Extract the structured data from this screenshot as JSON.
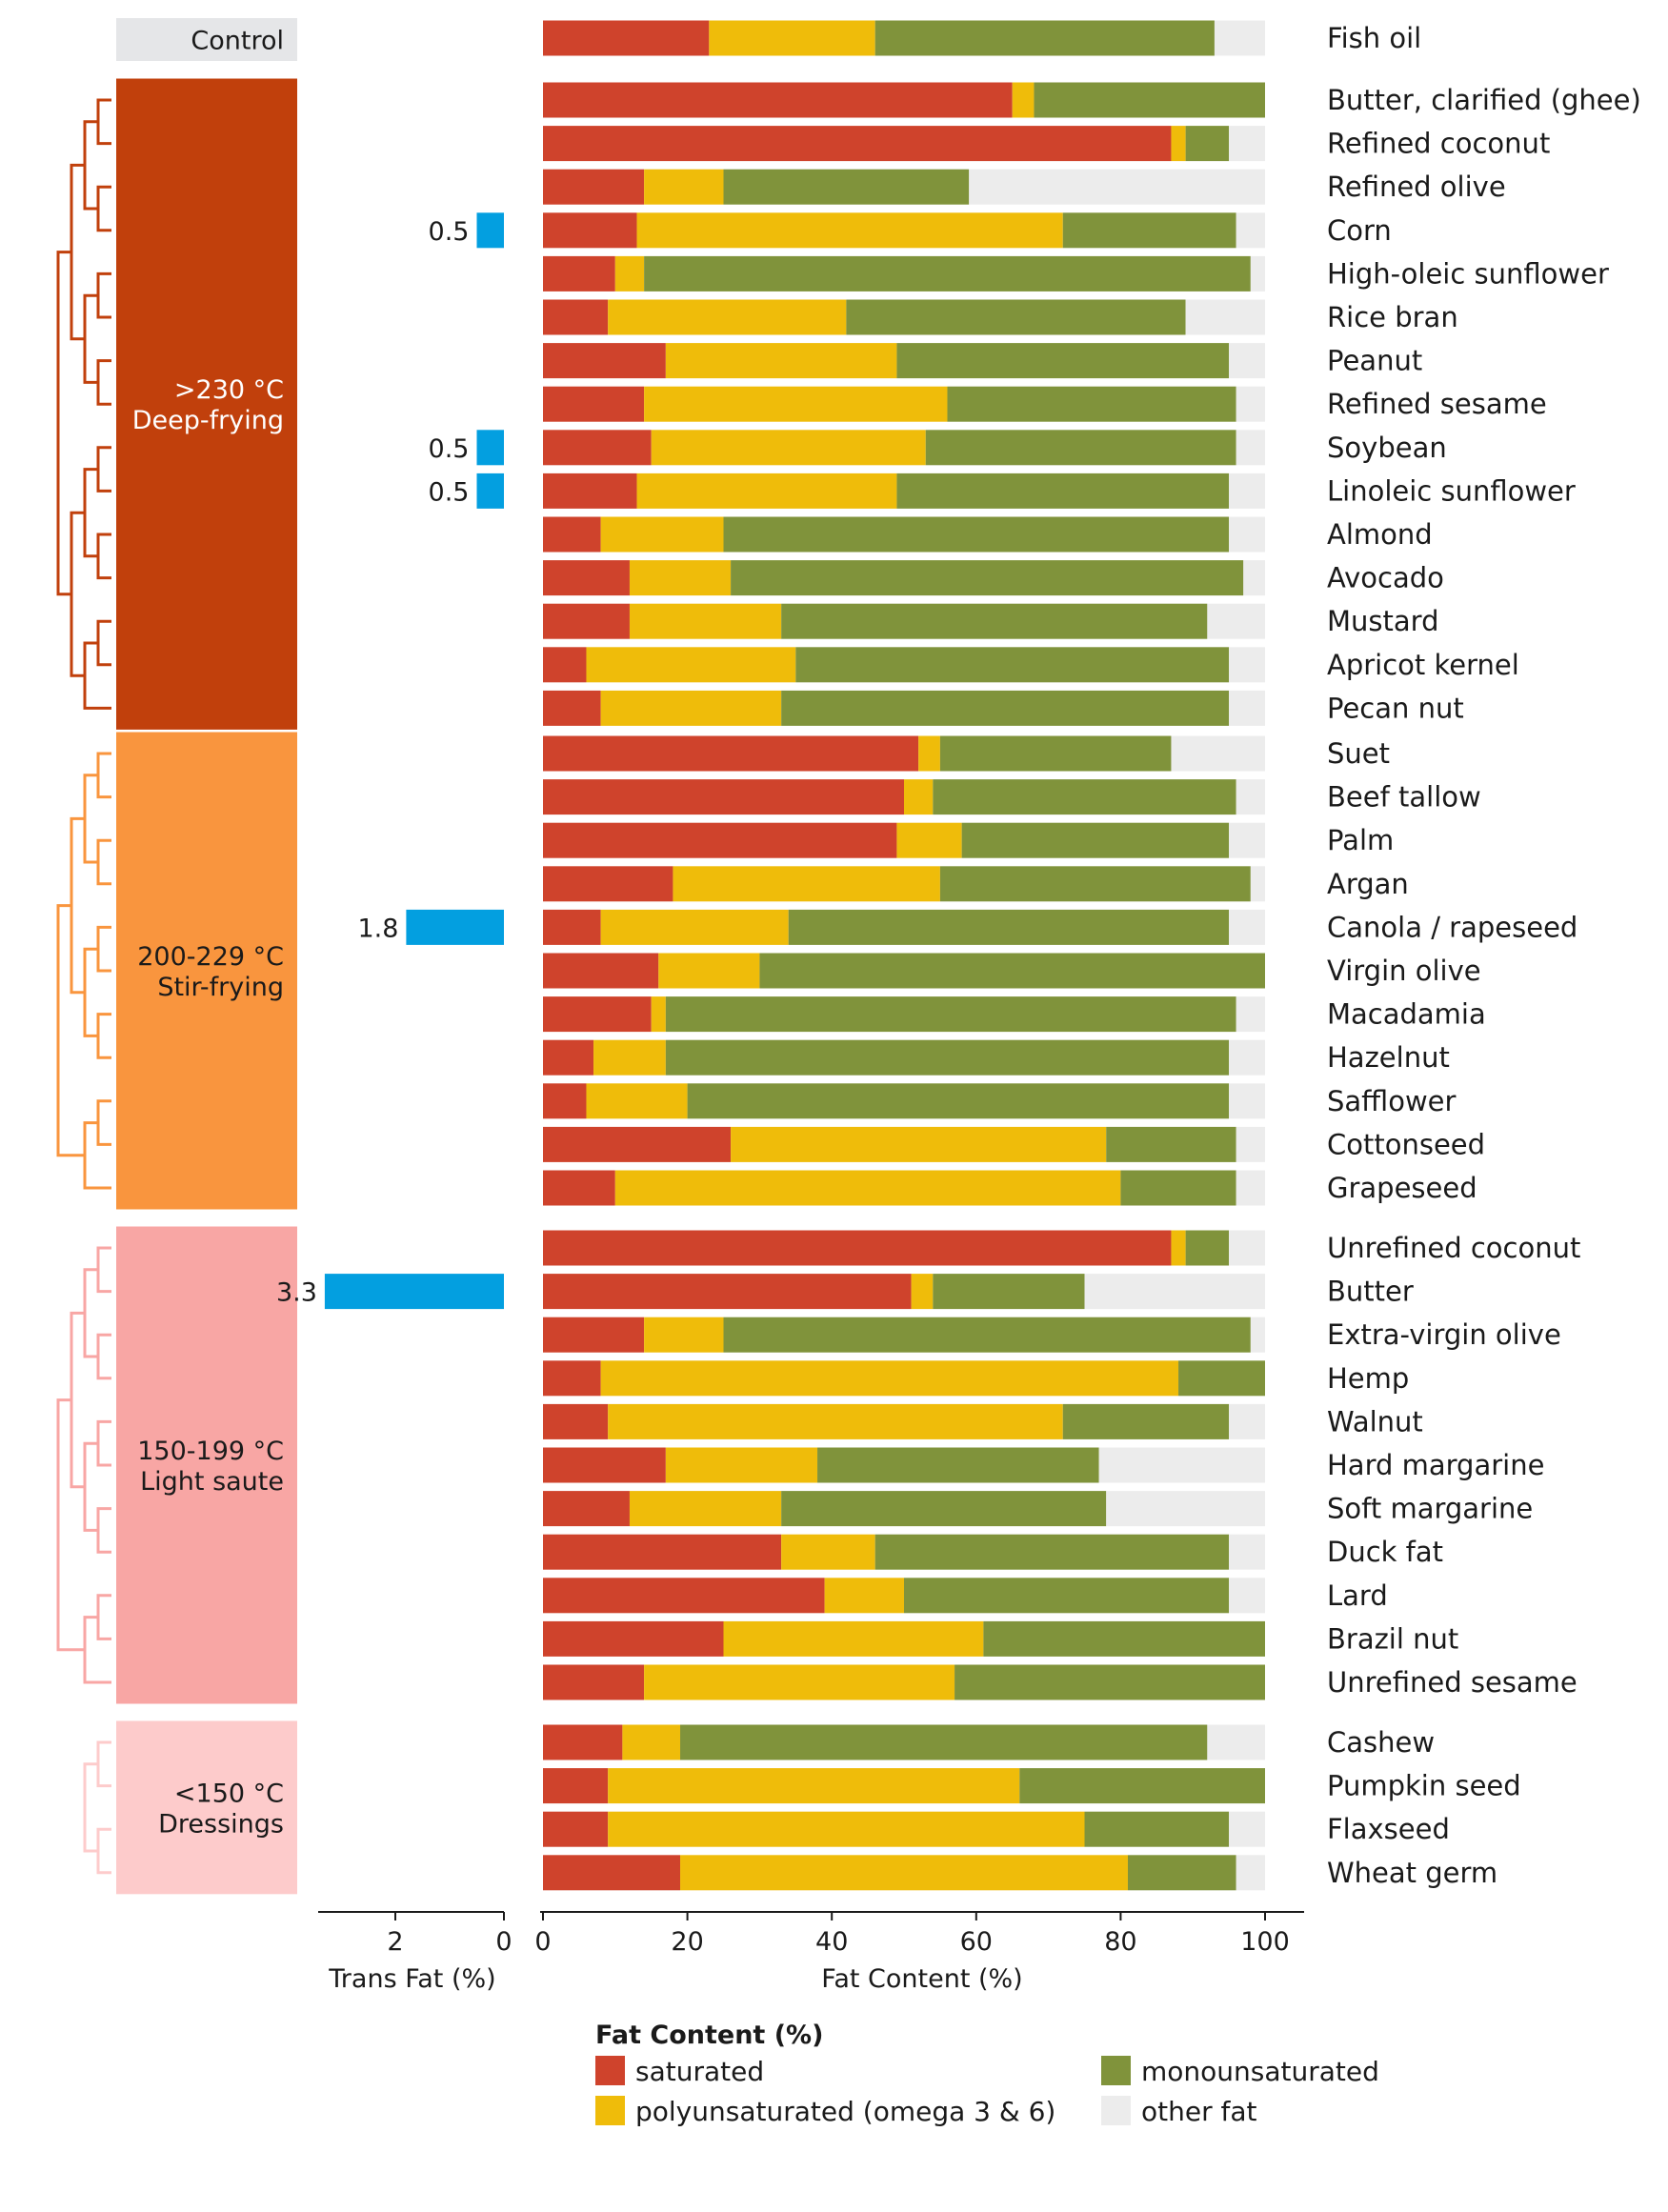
{
  "chart_data": {
    "type": "bar",
    "stacked": true,
    "orientation": "horizontal",
    "xlabel": "Fat Content (%)",
    "xlim": [
      0,
      100
    ],
    "xticks": [
      0,
      20,
      40,
      60,
      80,
      100
    ],
    "trans_xlabel": "Trans Fat (%)",
    "trans_xlim": [
      3.3,
      0
    ],
    "trans_xticks": [
      2,
      0
    ],
    "legend": {
      "title": "Fat Content (%)",
      "placement": "bottom",
      "entries": [
        {
          "key": "saturated",
          "label": "saturated",
          "color": "#cf432c"
        },
        {
          "key": "polyunsaturated",
          "label": "polyunsaturated (omega 3 & 6)",
          "color": "#efbc0a"
        },
        {
          "key": "monounsaturated",
          "label": "monounsaturated",
          "color": "#80933b"
        },
        {
          "key": "other",
          "label": "other fat",
          "color": "#ececec"
        }
      ]
    },
    "trans_fat_color": "#039fe0",
    "groups": [
      {
        "label_lines": [
          "Control"
        ],
        "color": "#e5e6e8",
        "text_color": "#1a1a1a",
        "oils": [
          {
            "name": "Fish oil",
            "saturated": 23,
            "polyunsaturated": 23,
            "monounsaturated": 47,
            "other": 7
          }
        ]
      },
      {
        "label_lines": [
          ">230 °C",
          "Deep-frying"
        ],
        "color": "#c1400c",
        "text_color": "#ffffff",
        "oils": [
          {
            "name": "Butter, clarified (ghee)",
            "saturated": 65,
            "polyunsaturated": 3,
            "monounsaturated": 32,
            "other": 0
          },
          {
            "name": "Refined coconut",
            "saturated": 87,
            "polyunsaturated": 2,
            "monounsaturated": 6,
            "other": 5
          },
          {
            "name": "Refined olive",
            "saturated": 14,
            "polyunsaturated": 11,
            "monounsaturated": 34,
            "other": 41
          },
          {
            "name": "Corn",
            "saturated": 13,
            "polyunsaturated": 59,
            "monounsaturated": 24,
            "other": 4,
            "trans": 0.5
          },
          {
            "name": "High-oleic sunflower",
            "saturated": 10,
            "polyunsaturated": 4,
            "monounsaturated": 84,
            "other": 2
          },
          {
            "name": "Rice bran",
            "saturated": 9,
            "polyunsaturated": 33,
            "monounsaturated": 47,
            "other": 11
          },
          {
            "name": "Peanut",
            "saturated": 17,
            "polyunsaturated": 32,
            "monounsaturated": 46,
            "other": 5
          },
          {
            "name": "Refined sesame",
            "saturated": 14,
            "polyunsaturated": 42,
            "monounsaturated": 40,
            "other": 4
          },
          {
            "name": "Soybean",
            "saturated": 15,
            "polyunsaturated": 38,
            "monounsaturated": 43,
            "other": 4,
            "trans": 0.5
          },
          {
            "name": "Linoleic sunflower",
            "saturated": 13,
            "polyunsaturated": 36,
            "monounsaturated": 46,
            "other": 5,
            "trans": 0.5
          },
          {
            "name": "Almond",
            "saturated": 8,
            "polyunsaturated": 17,
            "monounsaturated": 70,
            "other": 5
          },
          {
            "name": "Avocado",
            "saturated": 12,
            "polyunsaturated": 14,
            "monounsaturated": 71,
            "other": 3
          },
          {
            "name": "Mustard",
            "saturated": 12,
            "polyunsaturated": 21,
            "monounsaturated": 59,
            "other": 8
          },
          {
            "name": "Apricot kernel",
            "saturated": 6,
            "polyunsaturated": 29,
            "monounsaturated": 60,
            "other": 5
          },
          {
            "name": "Pecan nut",
            "saturated": 8,
            "polyunsaturated": 25,
            "monounsaturated": 62,
            "other": 5
          }
        ]
      },
      {
        "label_lines": [
          "200-229 °C",
          "Stir-frying"
        ],
        "color": "#f9953e",
        "text_color": "#1a1a1a",
        "oils": [
          {
            "name": "Suet",
            "saturated": 52,
            "polyunsaturated": 3,
            "monounsaturated": 32,
            "other": 13
          },
          {
            "name": "Beef tallow",
            "saturated": 50,
            "polyunsaturated": 4,
            "monounsaturated": 42,
            "other": 4
          },
          {
            "name": "Palm",
            "saturated": 49,
            "polyunsaturated": 9,
            "monounsaturated": 37,
            "other": 5
          },
          {
            "name": "Argan",
            "saturated": 18,
            "polyunsaturated": 37,
            "monounsaturated": 43,
            "other": 2
          },
          {
            "name": "Canola / rapeseed",
            "saturated": 8,
            "polyunsaturated": 26,
            "monounsaturated": 61,
            "other": 5,
            "trans": 1.8
          },
          {
            "name": "Virgin olive",
            "saturated": 16,
            "polyunsaturated": 14,
            "monounsaturated": 70,
            "other": 0
          },
          {
            "name": "Macadamia",
            "saturated": 15,
            "polyunsaturated": 2,
            "monounsaturated": 79,
            "other": 4
          },
          {
            "name": "Hazelnut",
            "saturated": 7,
            "polyunsaturated": 10,
            "monounsaturated": 78,
            "other": 5
          },
          {
            "name": "Safflower",
            "saturated": 6,
            "polyunsaturated": 14,
            "monounsaturated": 75,
            "other": 5
          },
          {
            "name": "Cottonseed",
            "saturated": 26,
            "polyunsaturated": 52,
            "monounsaturated": 18,
            "other": 4
          },
          {
            "name": "Grapeseed",
            "saturated": 10,
            "polyunsaturated": 70,
            "monounsaturated": 16,
            "other": 4
          }
        ]
      },
      {
        "label_lines": [
          "150-199 °C",
          "Light saute"
        ],
        "color": "#f8a6a4",
        "text_color": "#1a1a1a",
        "oils": [
          {
            "name": "Unrefined coconut",
            "saturated": 87,
            "polyunsaturated": 2,
            "monounsaturated": 6,
            "other": 5
          },
          {
            "name": "Butter",
            "saturated": 51,
            "polyunsaturated": 3,
            "monounsaturated": 21,
            "other": 25,
            "trans": 3.3,
            "trans_label": "3.3"
          },
          {
            "name": "Extra-virgin olive",
            "saturated": 14,
            "polyunsaturated": 11,
            "monounsaturated": 73,
            "other": 2
          },
          {
            "name": "Hemp",
            "saturated": 8,
            "polyunsaturated": 80,
            "monounsaturated": 12,
            "other": 0
          },
          {
            "name": "Walnut",
            "saturated": 9,
            "polyunsaturated": 63,
            "monounsaturated": 23,
            "other": 5
          },
          {
            "name": "Hard margarine",
            "saturated": 17,
            "polyunsaturated": 21,
            "monounsaturated": 39,
            "other": 23
          },
          {
            "name": "Soft margarine",
            "saturated": 12,
            "polyunsaturated": 21,
            "monounsaturated": 45,
            "other": 22
          },
          {
            "name": "Duck fat",
            "saturated": 33,
            "polyunsaturated": 13,
            "monounsaturated": 49,
            "other": 5
          },
          {
            "name": "Lard",
            "saturated": 39,
            "polyunsaturated": 11,
            "monounsaturated": 45,
            "other": 5
          },
          {
            "name": "Brazil nut",
            "saturated": 25,
            "polyunsaturated": 36,
            "monounsaturated": 39,
            "other": 0
          },
          {
            "name": "Unrefined sesame",
            "saturated": 14,
            "polyunsaturated": 43,
            "monounsaturated": 43,
            "other": 0
          }
        ]
      },
      {
        "label_lines": [
          "<150 °C",
          "Dressings"
        ],
        "color": "#fdcbcb",
        "text_color": "#1a1a1a",
        "oils": [
          {
            "name": "Cashew",
            "saturated": 11,
            "polyunsaturated": 8,
            "monounsaturated": 73,
            "other": 8
          },
          {
            "name": "Pumpkin seed",
            "saturated": 9,
            "polyunsaturated": 57,
            "monounsaturated": 34,
            "other": 0
          },
          {
            "name": "Flaxseed",
            "saturated": 9,
            "polyunsaturated": 66,
            "monounsaturated": 20,
            "other": 5
          },
          {
            "name": "Wheat germ",
            "saturated": 19,
            "polyunsaturated": 62,
            "monounsaturated": 15,
            "other": 4
          }
        ]
      }
    ]
  }
}
